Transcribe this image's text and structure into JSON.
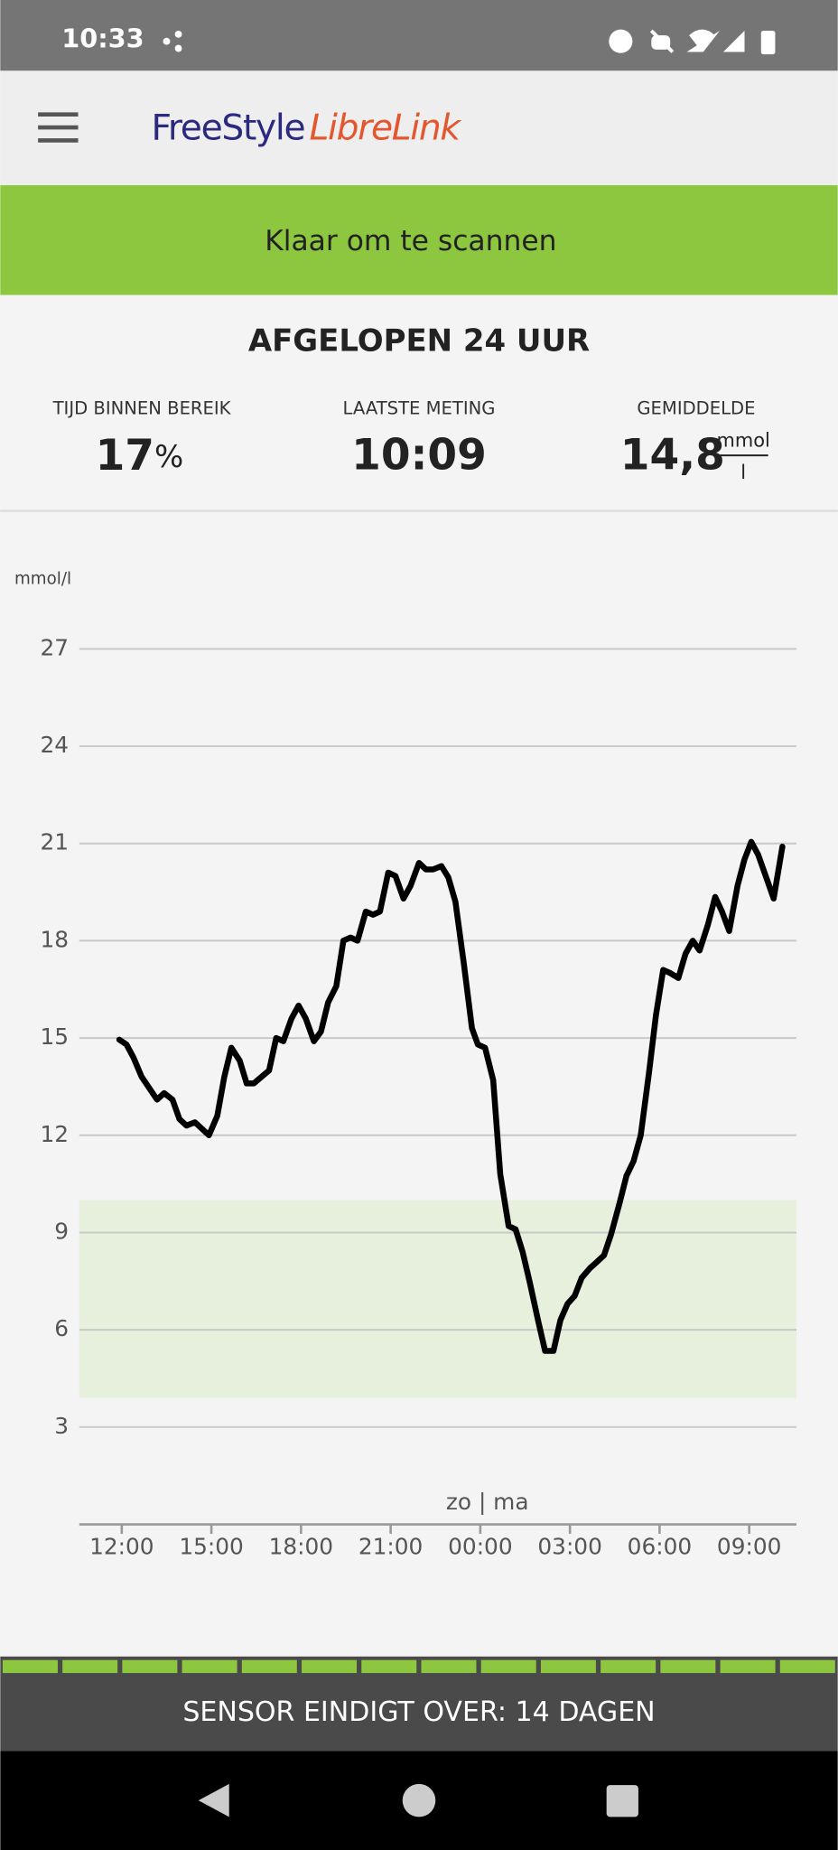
{
  "status_bar": {
    "time": "10:33"
  },
  "app_bar": {
    "logo_part1": "FreeStyle",
    "logo_part2": "LibreLink"
  },
  "banner": {
    "text": "Klaar om te scannen"
  },
  "summary": {
    "title": "AFGELOPEN 24 UUR",
    "stats": [
      {
        "label": "TIJD BINNEN BEREIK",
        "value": "17",
        "unit": "%"
      },
      {
        "label": "LAATSTE METING",
        "value": "10:09"
      },
      {
        "label": "GEMIDDELDE",
        "value": "14,8",
        "unit_top": "mmol",
        "unit_bottom": "l"
      }
    ]
  },
  "chart_data": {
    "type": "line",
    "y_label": "mmol/l",
    "annotation": "zo | ma",
    "x": [
      -0.08,
      0.16,
      0.39,
      0.67,
      1.18,
      1.42,
      1.7,
      1.93,
      2.17,
      2.45,
      2.92,
      3.2,
      3.43,
      3.67,
      3.95,
      4.18,
      4.42,
      4.93,
      5.17,
      5.41,
      5.68,
      5.92,
      6.16,
      6.43,
      6.67,
      6.91,
      7.18,
      7.42,
      7.66,
      7.89,
      8.17,
      8.41,
      8.64,
      8.92,
      9.16,
      9.43,
      9.67,
      9.95,
      10.18,
      10.42,
      10.7,
      10.93,
      11.17,
      11.45,
      11.72,
      11.92,
      12.16,
      12.43,
      12.67,
      12.95,
      13.18,
      13.42,
      13.66,
      13.93,
      14.17,
      14.45,
      14.68,
      14.92,
      15.16,
      15.39,
      15.67,
      15.91,
      16.14,
      16.38,
      16.66,
      16.89,
      17.13,
      17.37,
      17.64,
      17.88,
      18.12,
      18.36,
      18.63,
      18.87,
      19.11,
      19.34,
      19.62,
      19.86,
      20.09,
      20.33,
      20.61,
      20.84,
      21.07,
      21.3,
      21.59,
      21.82,
      22.11
    ],
    "values": [
      14.95,
      14.8,
      14.4,
      13.8,
      13.1,
      13.3,
      13.1,
      12.5,
      12.3,
      12.4,
      12.0,
      12.6,
      13.8,
      14.7,
      14.3,
      13.6,
      13.6,
      14.0,
      15.0,
      14.9,
      15.6,
      16.0,
      15.6,
      14.9,
      15.2,
      16.1,
      16.6,
      18.0,
      18.1,
      18.0,
      18.9,
      18.8,
      18.9,
      20.1,
      20.0,
      19.3,
      19.7,
      20.4,
      20.2,
      20.2,
      20.3,
      19.95,
      19.2,
      17.3,
      15.3,
      14.8,
      14.7,
      13.7,
      10.8,
      9.2,
      9.1,
      8.4,
      7.45,
      6.3,
      5.35,
      5.35,
      6.3,
      6.8,
      7.05,
      7.6,
      7.9,
      8.1,
      8.3,
      8.95,
      9.9,
      10.75,
      11.2,
      12.0,
      13.9,
      15.7,
      17.1,
      17.0,
      16.85,
      17.6,
      18.0,
      17.7,
      18.5,
      19.35,
      18.9,
      18.3,
      19.7,
      20.5,
      21.05,
      20.65,
      19.9,
      19.3,
      20.9
    ],
    "color": "#000000",
    "xlim": [
      -1.42,
      22.58
    ],
    "ylim": [
      0,
      27
    ],
    "xticks": [
      {
        "value": 0,
        "label": "12:00"
      },
      {
        "value": 3,
        "label": "15:00"
      },
      {
        "value": 6,
        "label": "18:00"
      },
      {
        "value": 9,
        "label": "21:00"
      },
      {
        "value": 12,
        "label": "00:00"
      },
      {
        "value": 15,
        "label": "03:00"
      },
      {
        "value": 18,
        "label": "06:00"
      },
      {
        "value": 21,
        "label": "09:00"
      }
    ],
    "yticks": [
      3,
      6,
      9,
      12,
      15,
      18,
      21,
      24,
      27
    ],
    "grid": true,
    "target_range": [
      3.9,
      10
    ],
    "target_color": "#e6f0dd"
  },
  "footer": {
    "sensor_text": "SENSOR EINDIGT OVER: 14 DAGEN"
  }
}
